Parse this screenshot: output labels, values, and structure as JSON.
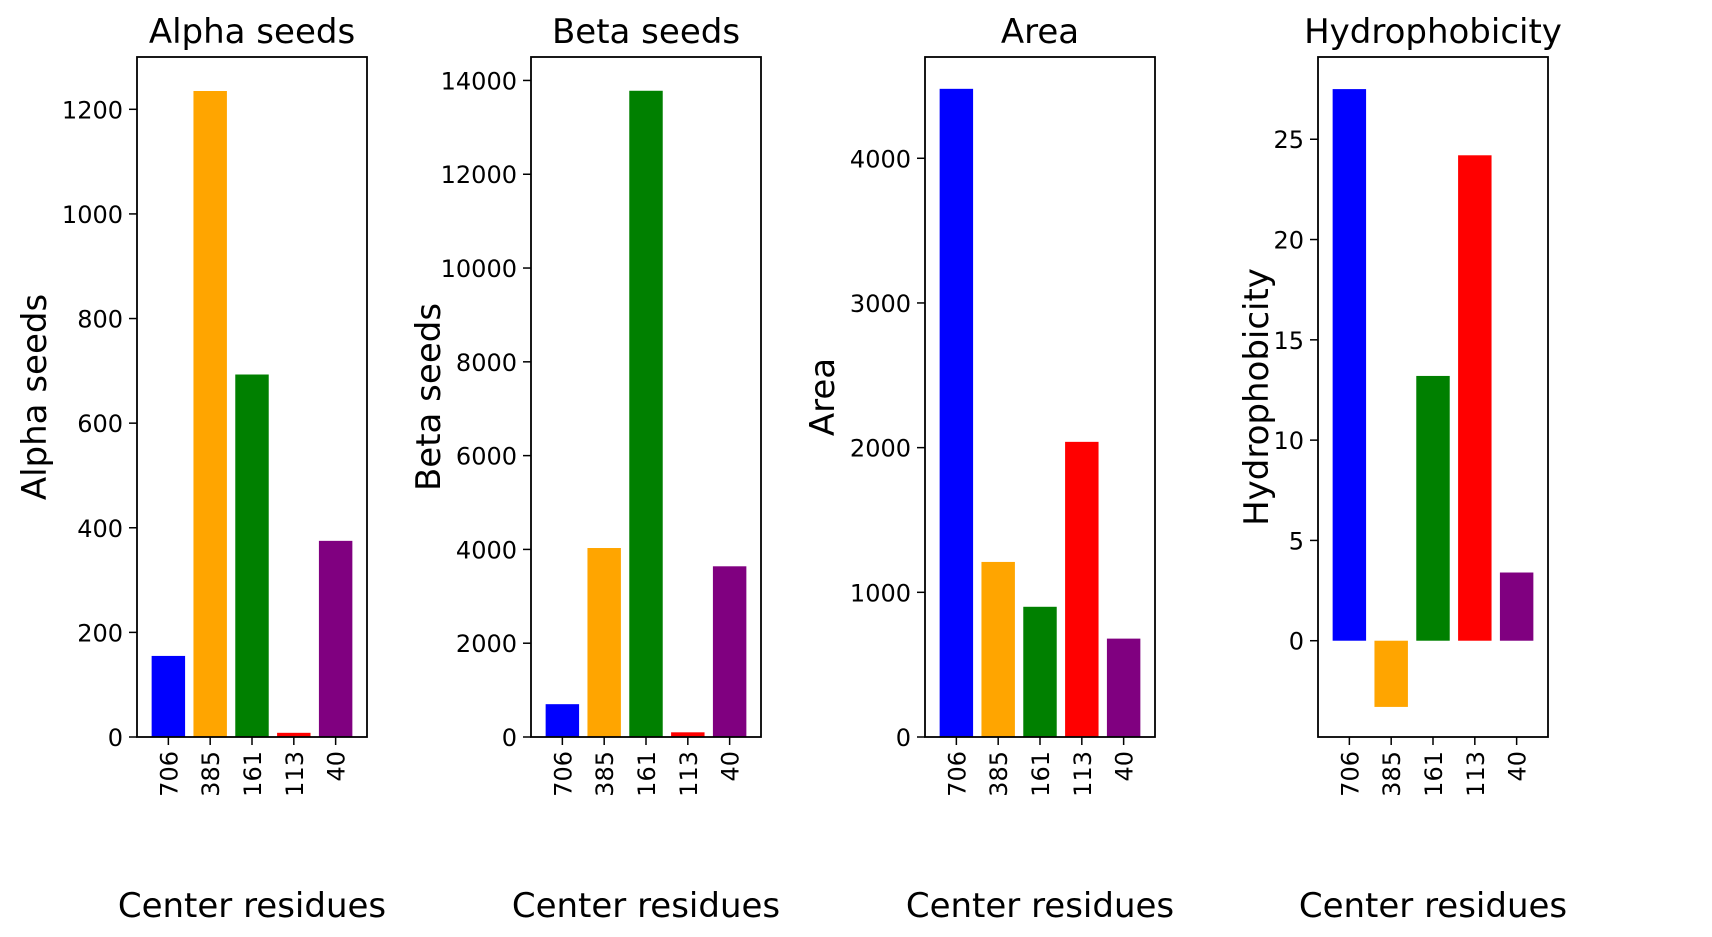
{
  "chart_data": [
    {
      "type": "bar",
      "title": "Alpha seeds",
      "xlabel": "Center residues",
      "ylabel": "Alpha seeds",
      "categories": [
        "706",
        "385",
        "161",
        "113",
        "40"
      ],
      "values": [
        155,
        1235,
        693,
        8,
        375
      ],
      "colors": [
        "#0000ff",
        "#ffa500",
        "#008000",
        "#ff0000",
        "#800080"
      ],
      "ylim": [
        0,
        1300
      ],
      "yticks": [
        0,
        200,
        400,
        600,
        800,
        1000,
        1200
      ],
      "ytick_labels": [
        "0",
        "200",
        "400",
        "600",
        "800",
        "1000",
        "1200"
      ]
    },
    {
      "type": "bar",
      "title": "Beta seeds",
      "xlabel": "Center residues",
      "ylabel": "Beta seeds",
      "categories": [
        "706",
        "385",
        "161",
        "113",
        "40"
      ],
      "values": [
        700,
        4030,
        13780,
        100,
        3640
      ],
      "colors": [
        "#0000ff",
        "#ffa500",
        "#008000",
        "#ff0000",
        "#800080"
      ],
      "ylim": [
        0,
        14500
      ],
      "yticks": [
        0,
        2000,
        4000,
        6000,
        8000,
        10000,
        12000,
        14000
      ],
      "ytick_labels": [
        "0",
        "2000",
        "4000",
        "6000",
        "8000",
        "10000",
        "12000",
        "14000"
      ]
    },
    {
      "type": "bar",
      "title": "Area",
      "xlabel": "Center residues",
      "ylabel": "Area",
      "categories": [
        "706",
        "385",
        "161",
        "113",
        "40"
      ],
      "values": [
        4480,
        1210,
        900,
        2040,
        680
      ],
      "colors": [
        "#0000ff",
        "#ffa500",
        "#008000",
        "#ff0000",
        "#800080"
      ],
      "ylim": [
        0,
        4700
      ],
      "yticks": [
        0,
        1000,
        2000,
        3000,
        4000
      ],
      "ytick_labels": [
        "0",
        "1000",
        "2000",
        "3000",
        "4000"
      ]
    },
    {
      "type": "bar",
      "title": "Hydrophobicity",
      "xlabel": "Center residues",
      "ylabel": "Hydrophobicity",
      "categories": [
        "706",
        "385",
        "161",
        "113",
        "40"
      ],
      "values": [
        27.5,
        -3.3,
        13.2,
        24.2,
        3.4
      ],
      "colors": [
        "#0000ff",
        "#ffa500",
        "#008000",
        "#ff0000",
        "#800080"
      ],
      "ylim": [
        -4.8,
        29.1
      ],
      "yticks": [
        0,
        5,
        10,
        15,
        20,
        25
      ],
      "ytick_labels": [
        "0",
        "5",
        "10",
        "15",
        "20",
        "25"
      ]
    }
  ]
}
